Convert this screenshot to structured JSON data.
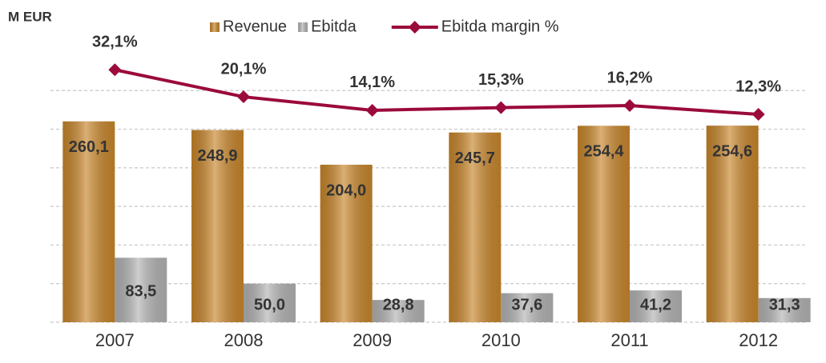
{
  "chart_data": {
    "type": "bar",
    "title": "M EUR",
    "categories": [
      "2007",
      "2008",
      "2009",
      "2010",
      "2011",
      "2012"
    ],
    "series": [
      {
        "name": "Revenue",
        "color": "#c8862b",
        "values": [
          260.1,
          248.9,
          204.0,
          245.7,
          254.4,
          254.6
        ],
        "value_labels": [
          "260,1",
          "248,9",
          "204,0",
          "245,7",
          "254,4",
          "254,6"
        ]
      },
      {
        "name": "Ebitda",
        "color": "#b3b3b3",
        "values": [
          83.5,
          50.0,
          28.8,
          37.6,
          41.2,
          31.3
        ],
        "value_labels": [
          "83,5",
          "50,0",
          "28,8",
          "37,6",
          "41,2",
          "31,3"
        ]
      },
      {
        "name": "Ebitda margin %",
        "type": "line",
        "axis": "y2",
        "color": "#9b0a3c",
        "values": [
          32.1,
          20.1,
          14.1,
          15.3,
          16.2,
          12.3
        ],
        "value_labels": [
          "32,1%",
          "20,1%",
          "14,1%",
          "15,3%",
          "16,2%",
          "12,3%"
        ]
      }
    ],
    "ylim": [
      0,
      350
    ],
    "yticks": [
      0,
      50,
      100,
      150,
      200,
      250,
      300
    ],
    "y2lim": [
      -80,
      40
    ],
    "grid": true,
    "legend": "top"
  }
}
